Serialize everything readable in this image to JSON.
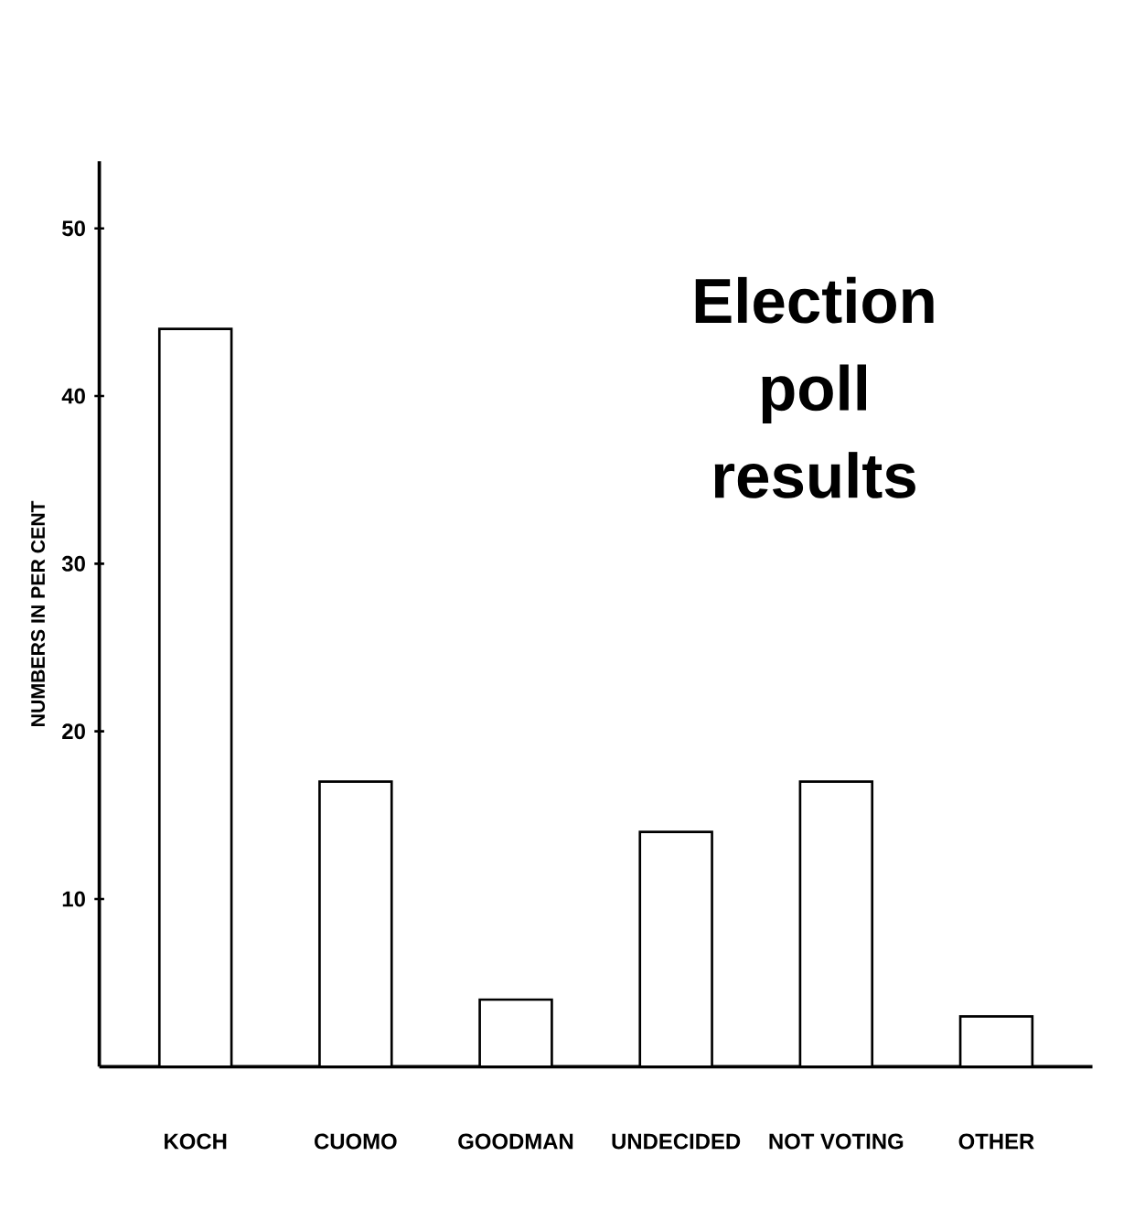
{
  "chart_data": {
    "type": "bar",
    "title": "Election poll results",
    "ylabel": "NUMBERS IN PER CENT",
    "categories": [
      "KOCH",
      "CUOMO",
      "GOODMAN",
      "UNDECIDED",
      "NOT VOTING",
      "OTHER"
    ],
    "values": [
      44,
      17,
      4,
      14,
      17,
      3
    ],
    "color": "#ffffff",
    "ylim": [
      0,
      54
    ],
    "yticks": [
      10,
      20,
      30,
      40,
      50
    ]
  }
}
